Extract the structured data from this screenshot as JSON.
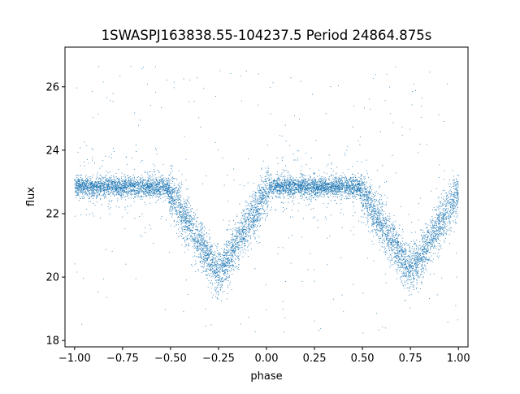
{
  "chart_data": {
    "type": "scatter",
    "title": "1SWASPJ163838.55-104237.5 Period 24864.875s",
    "xlabel": "phase",
    "ylabel": "flux",
    "xlim": [
      -1.05,
      1.05
    ],
    "ylim": [
      17.8,
      27.25
    ],
    "x_ticks": [
      -1.0,
      -0.75,
      -0.5,
      -0.25,
      0.0,
      0.25,
      0.5,
      0.75,
      1.0
    ],
    "x_tick_labels": [
      "−1.00",
      "−0.75",
      "−0.50",
      "−0.25",
      "0.00",
      "0.25",
      "0.50",
      "0.75",
      "1.00"
    ],
    "y_ticks": [
      18,
      20,
      22,
      24,
      26
    ],
    "y_tick_labels": [
      "18",
      "20",
      "22",
      "24",
      "26"
    ],
    "grid": false,
    "legend": "none",
    "point_color": "#1f77b4",
    "series": [
      {
        "baseline_flux": 22.85,
        "baseline_scatter": 0.15,
        "phase_range": [
          -1.0,
          1.0
        ],
        "dips": [
          {
            "center_phase": -0.25,
            "half_width": 0.27,
            "min_flux": 20.1
          },
          {
            "center_phase": 0.75,
            "half_width": 0.27,
            "min_flux": 20.2
          }
        ],
        "outlier_range": [
          18.2,
          26.8
        ]
      }
    ]
  }
}
